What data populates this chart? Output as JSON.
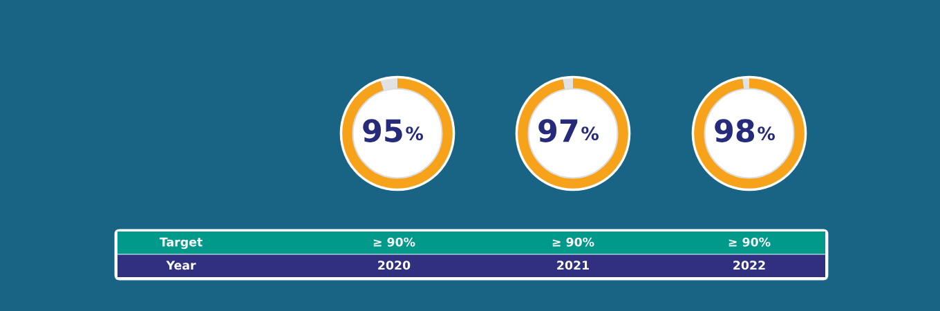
{
  "chart_data": [
    {
      "type": "donut",
      "categories": [
        null,
        null
      ],
      "values": [
        95,
        5
      ],
      "colors": [
        "#f7a21b",
        "#e2e2e2"
      ],
      "value_labels": [
        "95%",
        null
      ]
    },
    {
      "type": "donut",
      "categories": [
        null,
        null
      ],
      "values": [
        97,
        3
      ],
      "colors": [
        "#f7a21b",
        "#e2e2e2"
      ],
      "value_labels": [
        "97%",
        null
      ]
    },
    {
      "type": "donut",
      "categories": [
        null,
        null
      ],
      "values": [
        98,
        2
      ],
      "colors": [
        "#f7a21b",
        "#e2e2e2"
      ],
      "value_labels": [
        "98%",
        null
      ]
    },
    {
      "type": "other",
      "colors": [
        "#00998a",
        "#312f7f"
      ],
      "annotations": [
        "Target",
        "≥ 90%",
        "≥ 90%",
        "≥ 90%",
        "Year",
        "2020",
        "2021",
        "2022"
      ]
    }
  ]
}
